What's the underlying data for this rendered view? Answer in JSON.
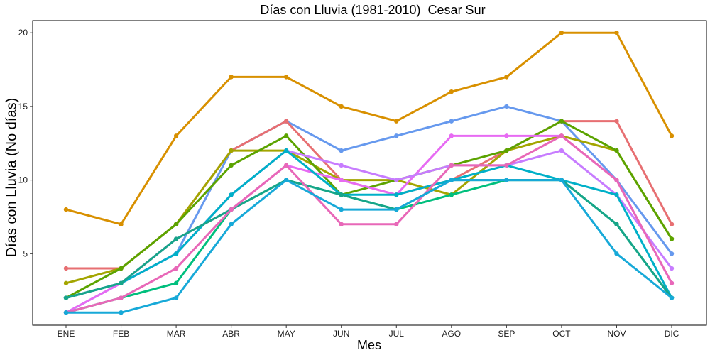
{
  "chart_data": {
    "type": "line",
    "title": "Días con Lluvia (1981-2010)  Cesar Sur",
    "xlabel": "Mes",
    "ylabel": "Días con Lluvia (No días)",
    "categories": [
      "ENE",
      "FEB",
      "MAR",
      "ABR",
      "MAY",
      "JUN",
      "JUL",
      "AGO",
      "SEP",
      "OCT",
      "NOV",
      "DIC"
    ],
    "ylim": [
      0,
      20.5
    ],
    "yticks": [
      5,
      10,
      15,
      20
    ],
    "grid": false,
    "legend": "none",
    "series": [
      {
        "color": "#D89000",
        "values": [
          8,
          7,
          13,
          17,
          17,
          15,
          14,
          16,
          17,
          20,
          20,
          13
        ]
      },
      {
        "color": "#6699EE",
        "values": [
          1,
          3,
          5,
          12,
          14,
          12,
          13,
          14,
          15,
          14,
          10,
          5
        ]
      },
      {
        "color": "#E76F72",
        "values": [
          4,
          4,
          7,
          12,
          14,
          10,
          9,
          10,
          12,
          14,
          14,
          7
        ]
      },
      {
        "color": "#A3A500",
        "values": [
          3,
          4,
          7,
          12,
          12,
          10,
          10,
          9,
          12,
          13,
          12,
          6
        ]
      },
      {
        "color": "#5BA300",
        "values": [
          2,
          4,
          7,
          11,
          13,
          9,
          10,
          11,
          12,
          14,
          12,
          6
        ]
      },
      {
        "color": "#E76BF3",
        "values": [
          1,
          3,
          6,
          8,
          11,
          10,
          9,
          13,
          13,
          13,
          10,
          3
        ]
      },
      {
        "color": "#C77CFF",
        "values": [
          2,
          3,
          5,
          9,
          12,
          11,
          10,
          11,
          11,
          12,
          9,
          4
        ]
      },
      {
        "color": "#00B0C8",
        "values": [
          2,
          3,
          5,
          9,
          12,
          9,
          9,
          10,
          11,
          10,
          9,
          2
        ]
      },
      {
        "color": "#00BF7D",
        "values": [
          1,
          2,
          3,
          8,
          10,
          9,
          8,
          9,
          10,
          10,
          7,
          2
        ]
      },
      {
        "color": "#17A589",
        "values": [
          2,
          3,
          6,
          8,
          10,
          9,
          8,
          10,
          10,
          10,
          7,
          2
        ]
      },
      {
        "color": "#E868B8",
        "values": [
          1,
          2,
          4,
          8,
          11,
          7,
          7,
          11,
          11,
          13,
          10,
          3
        ]
      },
      {
        "color": "#17A9D8",
        "values": [
          1,
          1,
          2,
          7,
          10,
          8,
          8,
          10,
          10,
          10,
          5,
          2
        ]
      }
    ]
  }
}
